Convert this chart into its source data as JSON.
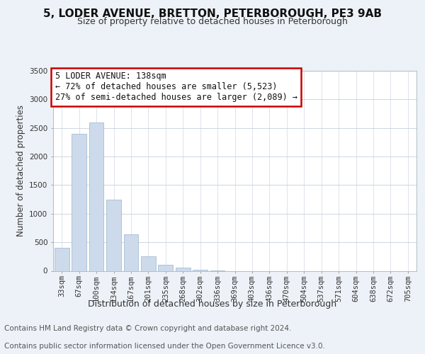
{
  "title": "5, LODER AVENUE, BRETTON, PETERBOROUGH, PE3 9AB",
  "subtitle": "Size of property relative to detached houses in Peterborough",
  "xlabel": "Distribution of detached houses by size in Peterborough",
  "ylabel": "Number of detached properties",
  "footer_line1": "Contains HM Land Registry data © Crown copyright and database right 2024.",
  "footer_line2": "Contains public sector information licensed under the Open Government Licence v3.0.",
  "bar_labels": [
    "33sqm",
    "67sqm",
    "100sqm",
    "134sqm",
    "167sqm",
    "201sqm",
    "235sqm",
    "268sqm",
    "302sqm",
    "336sqm",
    "369sqm",
    "403sqm",
    "436sqm",
    "470sqm",
    "504sqm",
    "537sqm",
    "571sqm",
    "604sqm",
    "638sqm",
    "672sqm",
    "705sqm"
  ],
  "bar_values": [
    400,
    2400,
    2600,
    1250,
    640,
    260,
    100,
    50,
    20,
    5,
    0,
    0,
    0,
    0,
    0,
    0,
    0,
    0,
    0,
    0,
    0
  ],
  "bar_color": "#ccdaeb",
  "bar_edge_color": "#9ab4cc",
  "annotation_title": "5 LODER AVENUE: 138sqm",
  "annotation_line2": "← 72% of detached houses are smaller (5,523)",
  "annotation_line3": "27% of semi-detached houses are larger (2,089) →",
  "annotation_box_color": "#ffffff",
  "annotation_box_edge": "#cc0000",
  "ylim": [
    0,
    3500
  ],
  "yticks": [
    0,
    500,
    1000,
    1500,
    2000,
    2500,
    3000,
    3500
  ],
  "background_color": "#edf2f8",
  "plot_background": "#ffffff",
  "grid_color": "#c5d0dc",
  "title_fontsize": 11,
  "subtitle_fontsize": 9,
  "ylabel_fontsize": 8.5,
  "xlabel_fontsize": 9,
  "tick_fontsize": 7.5,
  "annotation_fontsize": 8.5,
  "footer_fontsize": 7.5
}
